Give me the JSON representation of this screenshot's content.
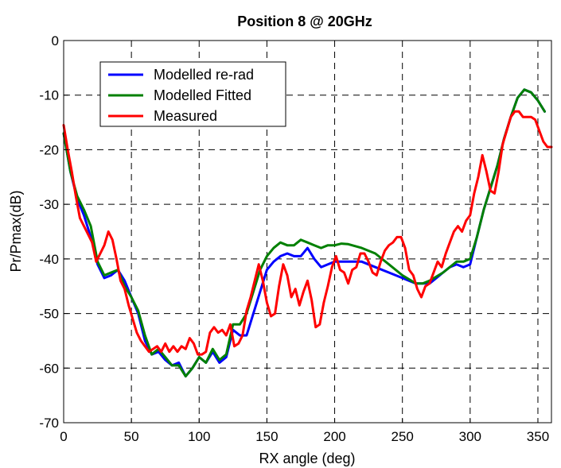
{
  "chart_data": {
    "type": "line",
    "title": "Position 8 @ 20GHz",
    "xlabel": "RX angle (deg)",
    "ylabel": "Pr/Pmax(dB)",
    "xlim": [
      0,
      360
    ],
    "ylim": [
      -70,
      0
    ],
    "xticks": [
      0,
      50,
      100,
      150,
      200,
      250,
      300,
      350
    ],
    "yticks": [
      0,
      -10,
      -20,
      -30,
      -40,
      -50,
      -60,
      -70
    ],
    "grid": true,
    "legend_position": "top-left",
    "series": [
      {
        "name": "Modelled re-rad",
        "color": "#0000ff",
        "x": [
          0,
          5,
          10,
          15,
          20,
          25,
          30,
          35,
          40,
          45,
          50,
          55,
          60,
          65,
          70,
          75,
          80,
          85,
          90,
          95,
          100,
          105,
          110,
          115,
          120,
          125,
          130,
          135,
          140,
          145,
          150,
          155,
          160,
          165,
          170,
          175,
          180,
          185,
          190,
          195,
          200,
          210,
          220,
          230,
          240,
          250,
          260,
          265,
          270,
          275,
          280,
          285,
          290,
          295,
          300,
          305,
          310,
          315,
          320,
          325,
          330,
          335,
          340,
          345,
          350,
          355
        ],
        "y": [
          -17,
          -24,
          -29,
          -32,
          -36,
          -41,
          -43.5,
          -43,
          -42,
          -44,
          -47,
          -50,
          -55,
          -57.5,
          -57,
          -58.5,
          -59.5,
          -59,
          -61.5,
          -60,
          -58,
          -59,
          -57,
          -59,
          -58,
          -53,
          -54,
          -54,
          -50,
          -46,
          -42,
          -40.5,
          -39.5,
          -39,
          -39.5,
          -39.5,
          -38,
          -40,
          -41.5,
          -41,
          -40.5,
          -40.5,
          -40.5,
          -41.5,
          -42.5,
          -43.5,
          -44.5,
          -44.5,
          -44.5,
          -43.5,
          -42.5,
          -41.5,
          -41,
          -41.5,
          -41,
          -36,
          -31,
          -27,
          -23,
          -18,
          -14,
          -10.5,
          -9,
          -9.5,
          -11,
          -13
        ]
      },
      {
        "name": "Modelled Fitted",
        "color": "#008000",
        "x": [
          0,
          5,
          10,
          15,
          20,
          25,
          30,
          35,
          40,
          45,
          50,
          55,
          60,
          65,
          70,
          75,
          80,
          85,
          90,
          95,
          100,
          105,
          110,
          115,
          120,
          125,
          130,
          135,
          140,
          145,
          150,
          155,
          160,
          165,
          170,
          175,
          180,
          185,
          190,
          195,
          200,
          205,
          210,
          220,
          230,
          240,
          250,
          260,
          265,
          270,
          280,
          290,
          295,
          300,
          305,
          310,
          315,
          320,
          325,
          330,
          335,
          340,
          345,
          350,
          355
        ],
        "y": [
          -17,
          -24,
          -28.5,
          -31,
          -34,
          -40.5,
          -43,
          -42.5,
          -42,
          -45,
          -47,
          -49.5,
          -54,
          -57.5,
          -56.5,
          -58,
          -59.5,
          -59.5,
          -61.5,
          -60,
          -58,
          -59,
          -56.5,
          -58.5,
          -57.5,
          -52,
          -52,
          -50,
          -46,
          -42,
          -39.5,
          -38,
          -37,
          -37.5,
          -37.5,
          -36.5,
          -37,
          -37.5,
          -38,
          -37.5,
          -37.5,
          -37.2,
          -37.3,
          -38,
          -39,
          -41,
          -43,
          -44.5,
          -44.5,
          -44,
          -42.5,
          -40.5,
          -40.5,
          -40,
          -36,
          -31,
          -27,
          -23,
          -18,
          -14,
          -10.5,
          -9,
          -9.5,
          -11,
          -13
        ]
      },
      {
        "name": "Measured",
        "color": "#ff0000",
        "x": [
          0,
          3,
          6,
          9,
          12,
          15,
          18,
          21,
          24,
          27,
          30,
          33,
          36,
          39,
          42,
          45,
          48,
          51,
          54,
          57,
          60,
          63,
          66,
          69,
          72,
          75,
          78,
          81,
          84,
          87,
          90,
          93,
          96,
          99,
          102,
          105,
          108,
          111,
          114,
          117,
          120,
          123,
          126,
          129,
          132,
          135,
          138,
          141,
          144,
          147,
          150,
          153,
          156,
          159,
          162,
          165,
          168,
          171,
          174,
          177,
          180,
          183,
          186,
          189,
          192,
          195,
          198,
          201,
          204,
          207,
          210,
          213,
          216,
          219,
          222,
          225,
          228,
          231,
          234,
          237,
          240,
          243,
          246,
          249,
          252,
          255,
          258,
          261,
          264,
          267,
          270,
          273,
          276,
          279,
          282,
          285,
          288,
          291,
          294,
          297,
          300,
          303,
          306,
          309,
          312,
          315,
          318,
          321,
          324,
          327,
          330,
          333,
          336,
          339,
          342,
          345,
          348,
          351,
          354,
          357,
          360
        ],
        "y": [
          -15.5,
          -20,
          -24,
          -28.5,
          -32.5,
          -34,
          -35.5,
          -37,
          -40.5,
          -39,
          -37.5,
          -35,
          -36.5,
          -40,
          -44,
          -45.5,
          -48.5,
          -51,
          -53.5,
          -55,
          -56,
          -57,
          -56.5,
          -56,
          -57,
          -55.5,
          -57,
          -56,
          -57,
          -56,
          -56.5,
          -54.5,
          -55.5,
          -57.5,
          -57.5,
          -57,
          -53.5,
          -52.5,
          -53.5,
          -53,
          -54,
          -52,
          -56,
          -55.5,
          -54,
          -49.5,
          -47,
          -44,
          -41,
          -44,
          -48,
          -50.5,
          -50,
          -45,
          -41,
          -43,
          -47,
          -45.5,
          -48.5,
          -46,
          -44,
          -47.5,
          -52.5,
          -52,
          -48,
          -45,
          -41.5,
          -39.5,
          -42,
          -42.5,
          -44.5,
          -42,
          -41.5,
          -39,
          -39,
          -40.5,
          -42.5,
          -43,
          -40.5,
          -38.5,
          -37.5,
          -37,
          -36,
          -36,
          -38,
          -42,
          -43,
          -45.5,
          -47,
          -45,
          -44.5,
          -42.5,
          -40.5,
          -41.5,
          -39,
          -37,
          -35,
          -34,
          -35,
          -33,
          -32,
          -28,
          -25,
          -21,
          -24,
          -27.5,
          -28,
          -24,
          -19,
          -16.5,
          -14,
          -13,
          -13,
          -14,
          -14,
          -14,
          -14.5,
          -16.5,
          -18.5,
          -19.5,
          -19.5
        ]
      }
    ]
  }
}
